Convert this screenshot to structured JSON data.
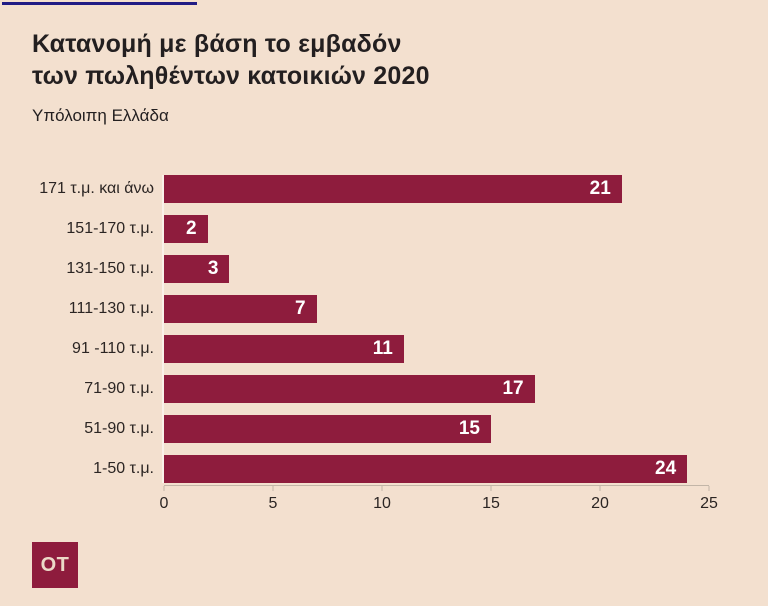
{
  "header": {
    "title": "Κατανομή με βάση το εμβαδόν\nτων πωληθέντων κατοικιών 2020",
    "subtitle": "Υπόλοιπη Ελλάδα"
  },
  "chart_data": {
    "type": "bar",
    "orientation": "horizontal",
    "title": "Κατανομή με βάση το εμβαδόν των πωληθέντων κατοικιών 2020",
    "subtitle": "Υπόλοιπη Ελλάδα",
    "categories": [
      "171 τ.μ. και άνω",
      "151-170 τ.μ.",
      "131-150 τ.μ.",
      "111-130 τ.μ.",
      "91 -110 τ.μ.",
      "71-90 τ.μ.",
      "51-90 τ.μ.",
      "1-50 τ.μ."
    ],
    "values": [
      21,
      2,
      3,
      7,
      11,
      17,
      15,
      24
    ],
    "xlabel": "",
    "ylabel": "",
    "xlim": [
      0,
      25
    ],
    "x_ticks": [
      0,
      5,
      10,
      15,
      20,
      25
    ],
    "grid": false,
    "legend_position": "none",
    "bar_color": "#8e1c3d",
    "value_label_color": "#ffffff"
  },
  "logo": {
    "text": "OT"
  },
  "colors": {
    "background": "#f3e0cf",
    "accent_line": "#211c85",
    "bar": "#8e1c3d",
    "axis": "#c2b5a7",
    "text": "#231f20",
    "logo_background": "#8e1c3d",
    "logo_text": "#ecd9c7"
  }
}
